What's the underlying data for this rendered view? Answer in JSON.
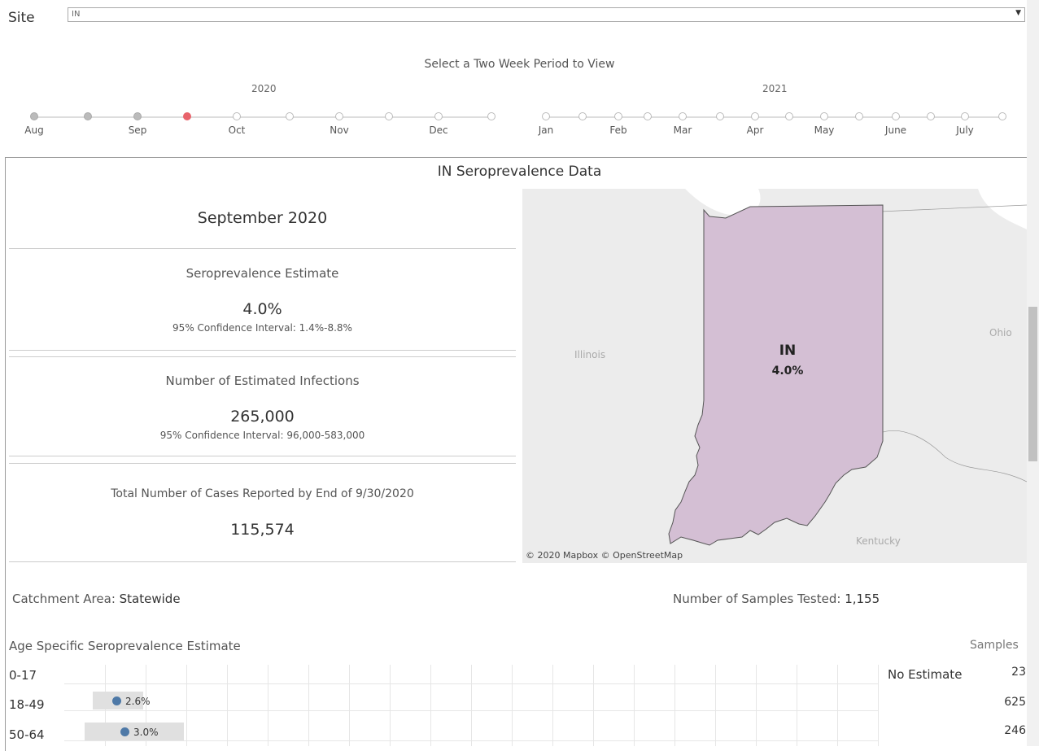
{
  "site": {
    "label": "Site",
    "selected": "IN"
  },
  "period_selector": {
    "title": "Select a Two Week Period to View",
    "years": [
      "2020",
      "2021"
    ],
    "months": [
      "Aug",
      "Sep",
      "Oct",
      "Nov",
      "Dec",
      "Jan",
      "Feb",
      "Mar",
      "Apr",
      "May",
      "June",
      "July"
    ],
    "selected_index": 3,
    "colors": {
      "selected": "#e8636b",
      "past": "#bbbbbb",
      "future": "#ffffff"
    }
  },
  "panel": {
    "title": "IN Seroprevalence Data",
    "month": "September 2020",
    "seroprevalence": {
      "title": "Seroprevalence Estimate",
      "value": "4.0%",
      "ci": "95% Confidence Interval: 1.4%-8.8%"
    },
    "infections": {
      "title": "Number of Estimated Infections",
      "value": "265,000",
      "ci": "95% Confidence Interval: 96,000-583,000"
    },
    "cases": {
      "title": "Total Number of Cases Reported by End of 9/30/2020",
      "value": "115,574"
    }
  },
  "map": {
    "state_label": "IN",
    "state_value": "4.0%",
    "neighbors": [
      "Illinois",
      "Ohio",
      "Kentucky"
    ],
    "credit": "© 2020 Mapbox  © OpenStreetMap",
    "state_color": "#d4bfd4"
  },
  "catchment": {
    "label": "Catchment Area:",
    "value": "Statewide"
  },
  "samples_tested": {
    "label": "Number of Samples Tested:",
    "value": "1,155"
  },
  "age_section": {
    "title": "Age Specific Seroprevalence Estimate",
    "samples_header": "Samples",
    "rows": [
      {
        "age": "0-17",
        "estimate": null,
        "estimate_label": "",
        "no_estimate": "No Estimate",
        "samples": "23"
      },
      {
        "age": "18-49",
        "estimate": 2.6,
        "estimate_label": "2.6%",
        "samples": "625"
      },
      {
        "age": "50-64",
        "estimate": 3.0,
        "estimate_label": "3.0%",
        "samples": "246"
      }
    ]
  }
}
